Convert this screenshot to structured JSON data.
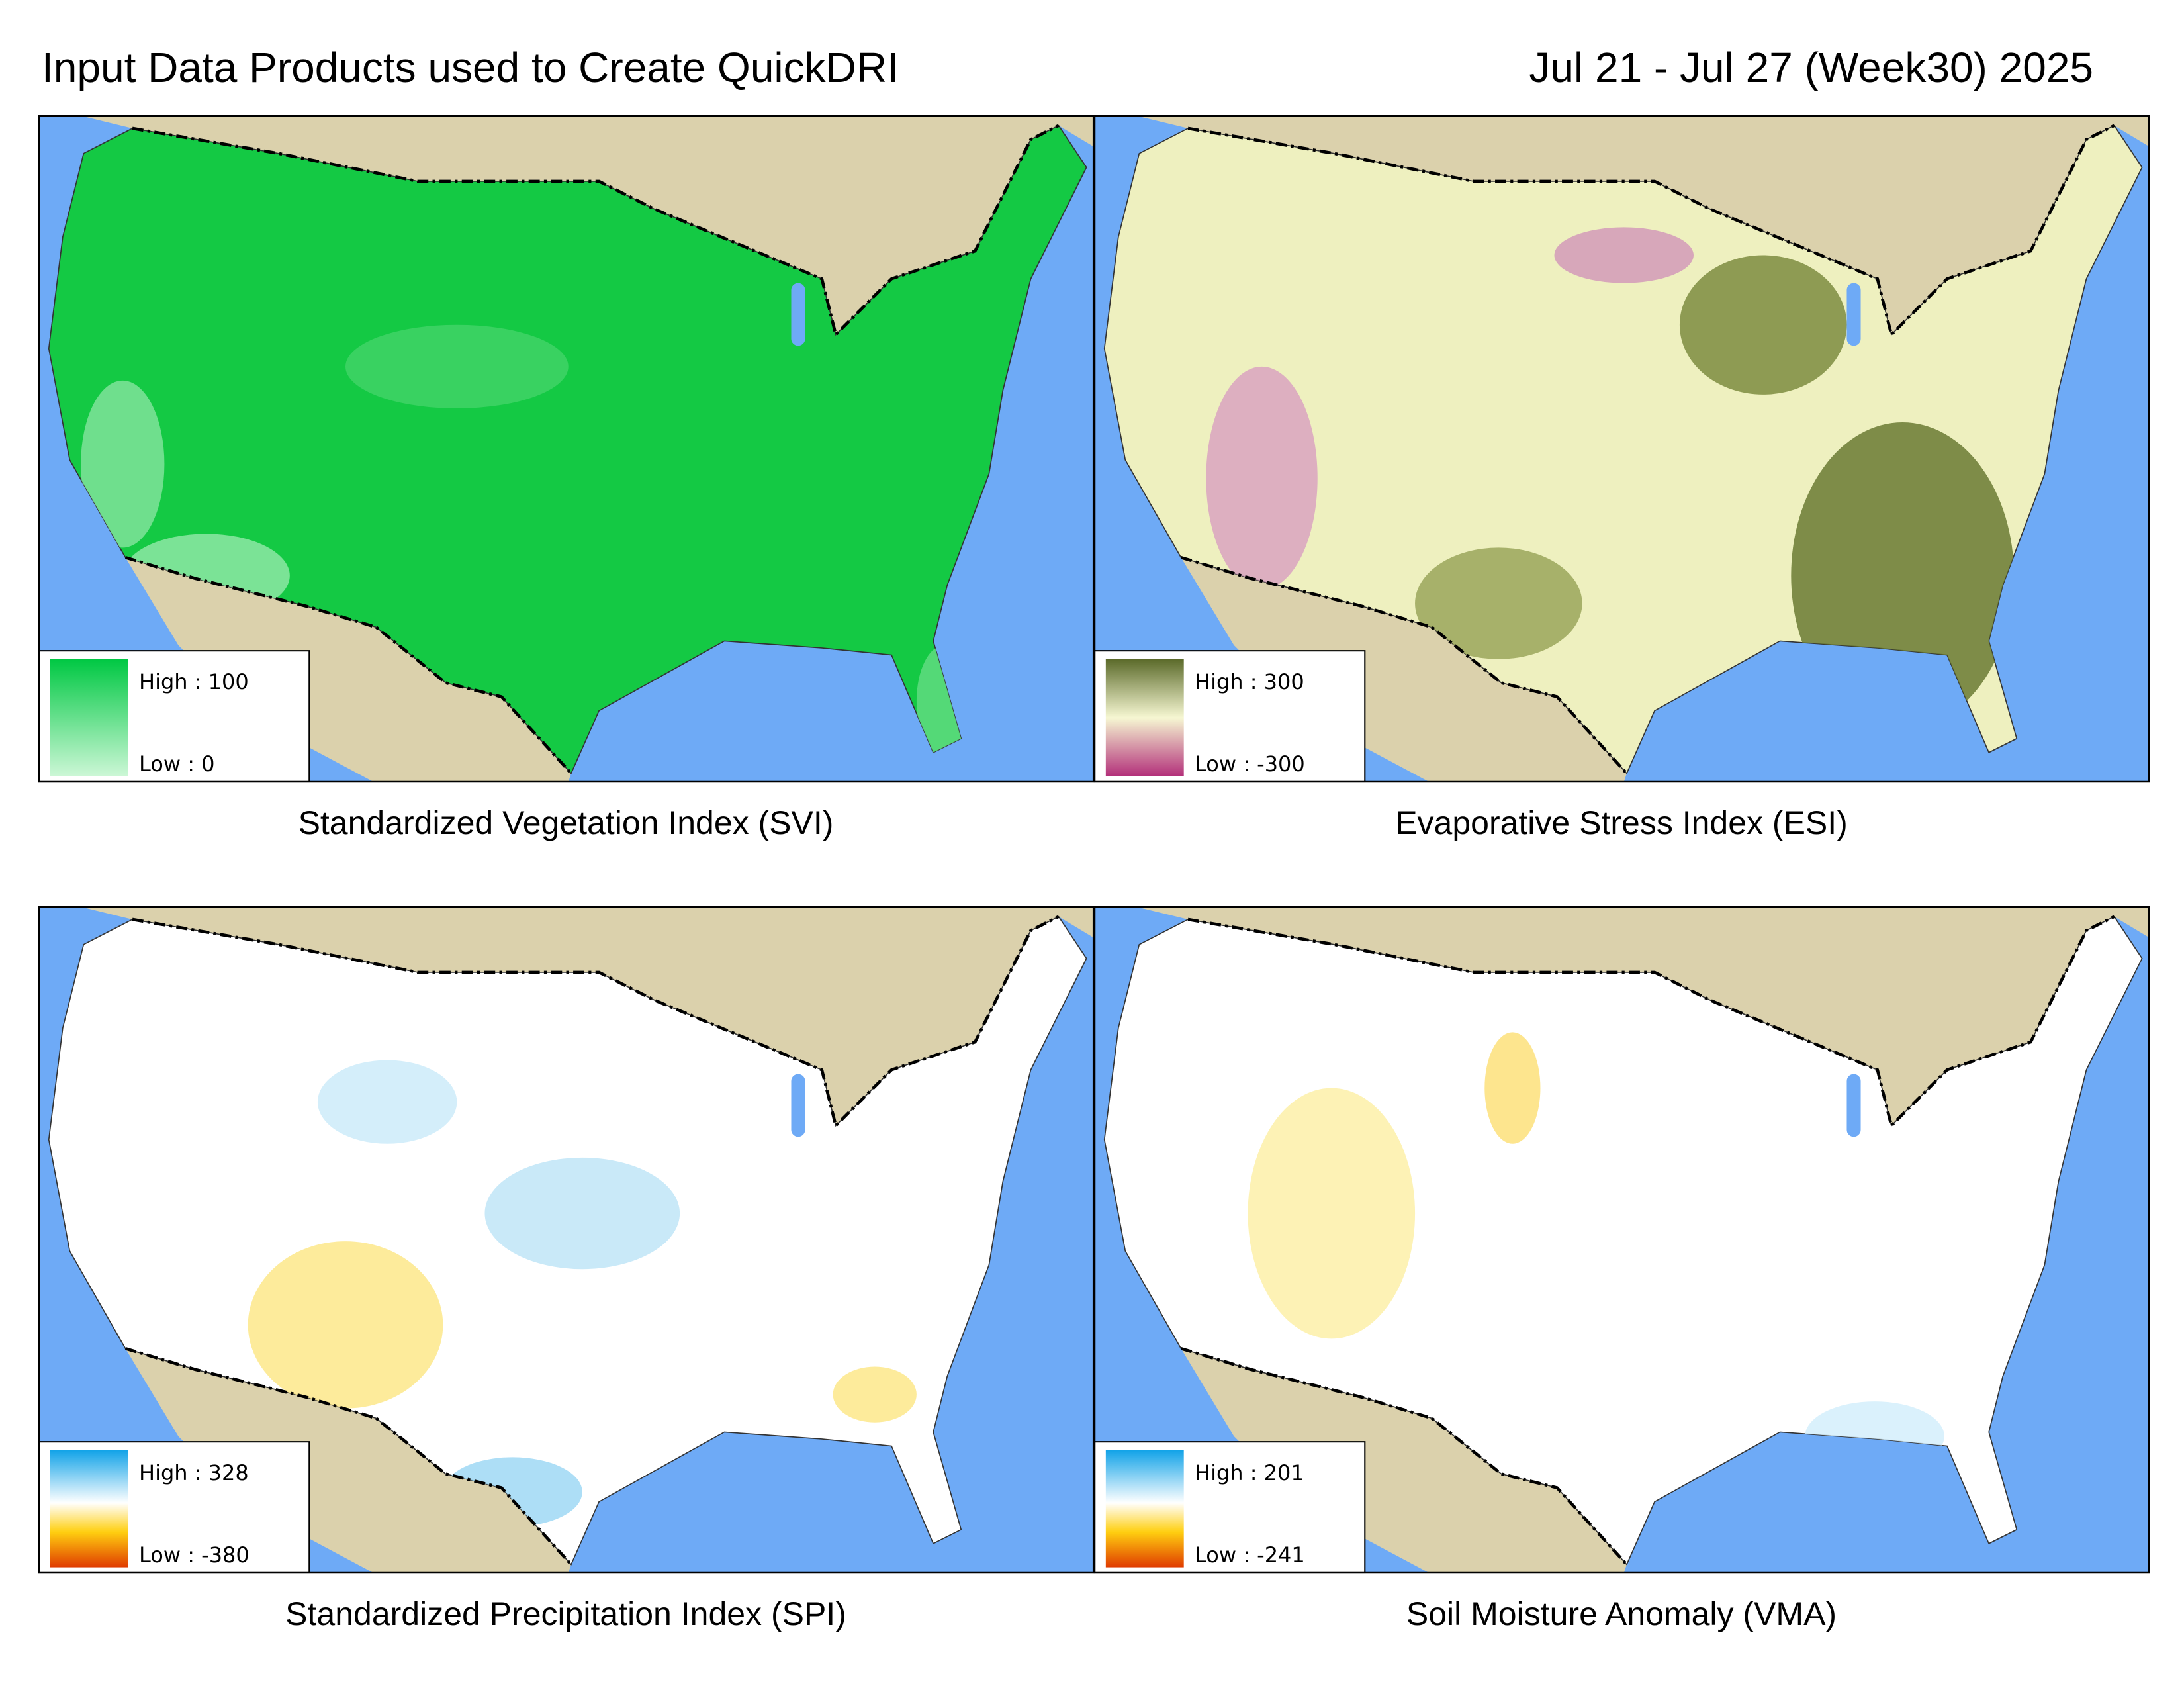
{
  "header": {
    "title": "Input Data Products used to Create QuickDRI",
    "date": "Jul 21 - Jul 27 (Week30) 2025"
  },
  "panels": [
    {
      "caption": "Standardized Vegetation Index (SVI)",
      "legend": {
        "high": "High : 100",
        "low": "Low : 0"
      }
    },
    {
      "caption": "Evaporative Stress Index (ESI)",
      "legend": {
        "high": "High : 300",
        "low": "Low : -300"
      }
    },
    {
      "caption": "Standardized Precipitation Index (SPI)",
      "legend": {
        "high": "High : 328",
        "low": "Low : -380"
      }
    },
    {
      "caption": "Soil Moisture Anomaly (VMA)",
      "legend": {
        "high": "High : 201",
        "low": "Low : -241"
      }
    }
  ]
}
